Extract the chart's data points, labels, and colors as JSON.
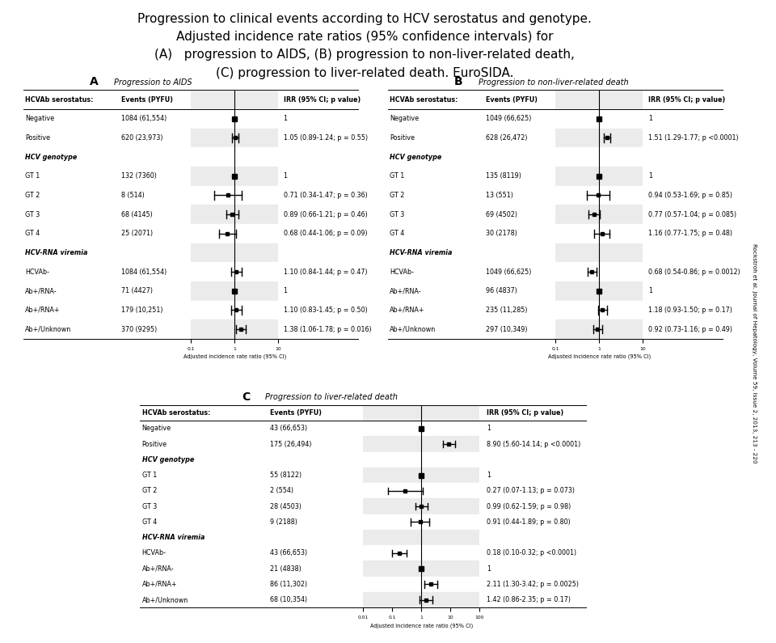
{
  "title_line1": "Progression to clinical events according to HCV serostatus and genotype.",
  "title_line2": "Adjusted incidence rate ratios (95% confidence intervals) for",
  "title_line3": "(A)   progression to AIDS, (B) progression to non-liver-related death,",
  "title_line4": "(C) progression to liver-related death. EuroSIDA.",
  "side_text": "Rockstroh et al. Journal of Hepatology, Volume 59, Issue 2, 2013, 213 - 220",
  "panel_A": {
    "title": "Progression to AIDS",
    "label": "A",
    "rows": [
      {
        "label": "HCVAb serostatus:",
        "events": "Events (PYFU)",
        "irr": null,
        "lo": null,
        "hi": null,
        "irr_text": "IRR (95% CI; p value)",
        "header": true
      },
      {
        "label": "Negative",
        "events": "1084 (61,554)",
        "irr": 1.0,
        "lo": 1.0,
        "hi": 1.0,
        "irr_text": "1",
        "reference": true
      },
      {
        "label": "Positive",
        "events": "620 (23,973)",
        "irr": 1.05,
        "lo": 0.89,
        "hi": 1.24,
        "irr_text": "1.05 (0.89-1.24; p = 0.55)",
        "reference": false
      },
      {
        "label": "HCV genotype",
        "events": "",
        "irr": null,
        "lo": null,
        "hi": null,
        "irr_text": "",
        "bold": true
      },
      {
        "label": "GT 1",
        "events": "132 (7360)",
        "irr": 1.0,
        "lo": 1.0,
        "hi": 1.0,
        "irr_text": "1",
        "reference": true
      },
      {
        "label": "GT 2",
        "events": "8 (514)",
        "irr": 0.71,
        "lo": 0.34,
        "hi": 1.47,
        "irr_text": "0.71 (0.34-1.47; p = 0.36)",
        "reference": false
      },
      {
        "label": "GT 3",
        "events": "68 (4145)",
        "irr": 0.89,
        "lo": 0.66,
        "hi": 1.21,
        "irr_text": "0.89 (0.66-1.21; p = 0.46)",
        "reference": false
      },
      {
        "label": "GT 4",
        "events": "25 (2071)",
        "irr": 0.68,
        "lo": 0.44,
        "hi": 1.06,
        "irr_text": "0.68 (0.44-1.06; p = 0.09)",
        "reference": false
      },
      {
        "label": "HCV-RNA viremia",
        "events": "",
        "irr": null,
        "lo": null,
        "hi": null,
        "irr_text": "",
        "bold": true
      },
      {
        "label": "HCVAb-",
        "events": "1084 (61,554)",
        "irr": 1.1,
        "lo": 0.84,
        "hi": 1.44,
        "irr_text": "1.10 (0.84-1.44; p = 0.47)",
        "reference": false
      },
      {
        "label": "Ab+/RNA-",
        "events": "71 (4427)",
        "irr": 1.0,
        "lo": 1.0,
        "hi": 1.0,
        "irr_text": "1",
        "reference": true
      },
      {
        "label": "Ab+/RNA+",
        "events": "179 (10,251)",
        "irr": 1.1,
        "lo": 0.83,
        "hi": 1.45,
        "irr_text": "1.10 (0.83-1.45; p = 0.50)",
        "reference": false
      },
      {
        "label": "Ab+/Unknown",
        "events": "370 (9295)",
        "irr": 1.38,
        "lo": 1.06,
        "hi": 1.78,
        "irr_text": "1.38 (1.06-1.78; p = 0.016)",
        "reference": false
      }
    ],
    "xmin": 0.1,
    "xmax": 10,
    "xticks": [
      0.1,
      1,
      10
    ],
    "xlabel": "Adjusted incidence rate ratio (95% CI)"
  },
  "panel_B": {
    "title": "Progression to non-liver-related death",
    "label": "B",
    "rows": [
      {
        "label": "HCVAb serostatus:",
        "events": "Events (PYFU)",
        "irr": null,
        "lo": null,
        "hi": null,
        "irr_text": "IRR (95% CI; p value)",
        "header": true
      },
      {
        "label": "Negative",
        "events": "1049 (66,625)",
        "irr": 1.0,
        "lo": 1.0,
        "hi": 1.0,
        "irr_text": "1",
        "reference": true
      },
      {
        "label": "Positive",
        "events": "628 (26,472)",
        "irr": 1.51,
        "lo": 1.29,
        "hi": 1.77,
        "irr_text": "1.51 (1.29-1.77; p <0.0001)",
        "reference": false
      },
      {
        "label": "HCV genotype",
        "events": "",
        "irr": null,
        "lo": null,
        "hi": null,
        "irr_text": "",
        "bold": true
      },
      {
        "label": "GT 1",
        "events": "135 (8119)",
        "irr": 1.0,
        "lo": 1.0,
        "hi": 1.0,
        "irr_text": "1",
        "reference": true
      },
      {
        "label": "GT 2",
        "events": "13 (551)",
        "irr": 0.94,
        "lo": 0.53,
        "hi": 1.69,
        "irr_text": "0.94 (0.53-1.69; p = 0.85)",
        "reference": false
      },
      {
        "label": "GT 3",
        "events": "69 (4502)",
        "irr": 0.77,
        "lo": 0.57,
        "hi": 1.04,
        "irr_text": "0.77 (0.57-1.04; p = 0.085)",
        "reference": false
      },
      {
        "label": "GT 4",
        "events": "30 (2178)",
        "irr": 1.16,
        "lo": 0.77,
        "hi": 1.75,
        "irr_text": "1.16 (0.77-1.75; p = 0.48)",
        "reference": false
      },
      {
        "label": "HCV-RNA viremia",
        "events": "",
        "irr": null,
        "lo": null,
        "hi": null,
        "irr_text": "",
        "bold": true
      },
      {
        "label": "HCVAb-",
        "events": "1049 (66,625)",
        "irr": 0.68,
        "lo": 0.54,
        "hi": 0.86,
        "irr_text": "0.68 (0.54-0.86; p = 0.0012)",
        "reference": false
      },
      {
        "label": "Ab+/RNA-",
        "events": "96 (4837)",
        "irr": 1.0,
        "lo": 1.0,
        "hi": 1.0,
        "irr_text": "1",
        "reference": true
      },
      {
        "label": "Ab+/RNA+",
        "events": "235 (11,285)",
        "irr": 1.18,
        "lo": 0.93,
        "hi": 1.5,
        "irr_text": "1.18 (0.93-1.50; p = 0.17)",
        "reference": false
      },
      {
        "label": "Ab+/Unknown",
        "events": "297 (10,349)",
        "irr": 0.92,
        "lo": 0.73,
        "hi": 1.16,
        "irr_text": "0.92 (0.73-1.16; p = 0.49)",
        "reference": false
      }
    ],
    "xmin": 0.1,
    "xmax": 10,
    "xticks": [
      0.1,
      1,
      10
    ],
    "xlabel": "Adjusted incidence rate ratio (95% CI)"
  },
  "panel_C": {
    "title": "Progression to liver-related death",
    "label": "C",
    "rows": [
      {
        "label": "HCVAb serostatus:",
        "events": "Events (PYFU)",
        "irr": null,
        "lo": null,
        "hi": null,
        "irr_text": "IRR (95% CI; p value)",
        "header": true
      },
      {
        "label": "Negative",
        "events": "43 (66,653)",
        "irr": 1.0,
        "lo": 1.0,
        "hi": 1.0,
        "irr_text": "1",
        "reference": true
      },
      {
        "label": "Positive",
        "events": "175 (26,494)",
        "irr": 8.9,
        "lo": 5.6,
        "hi": 14.14,
        "irr_text": "8.90 (5.60-14.14; p <0.0001)",
        "reference": false
      },
      {
        "label": "HCV genotype",
        "events": "",
        "irr": null,
        "lo": null,
        "hi": null,
        "irr_text": "",
        "bold": true
      },
      {
        "label": "GT 1",
        "events": "55 (8122)",
        "irr": 1.0,
        "lo": 1.0,
        "hi": 1.0,
        "irr_text": "1",
        "reference": true
      },
      {
        "label": "GT 2",
        "events": "2 (554)",
        "irr": 0.27,
        "lo": 0.07,
        "hi": 1.13,
        "irr_text": "0.27 (0.07-1.13; p = 0.073)",
        "reference": false
      },
      {
        "label": "GT 3",
        "events": "28 (4503)",
        "irr": 0.99,
        "lo": 0.62,
        "hi": 1.59,
        "irr_text": "0.99 (0.62-1.59; p = 0.98)",
        "reference": false
      },
      {
        "label": "GT 4",
        "events": "9 (2188)",
        "irr": 0.91,
        "lo": 0.44,
        "hi": 1.89,
        "irr_text": "0.91 (0.44-1.89; p = 0.80)",
        "reference": false
      },
      {
        "label": "HCV-RNA viremia",
        "events": "",
        "irr": null,
        "lo": null,
        "hi": null,
        "irr_text": "",
        "bold": true
      },
      {
        "label": "HCVAb-",
        "events": "43 (66,653)",
        "irr": 0.18,
        "lo": 0.1,
        "hi": 0.32,
        "irr_text": "0.18 (0.10-0.32; p <0.0001)",
        "reference": false
      },
      {
        "label": "Ab+/RNA-",
        "events": "21 (4838)",
        "irr": 1.0,
        "lo": 1.0,
        "hi": 1.0,
        "irr_text": "1",
        "reference": true
      },
      {
        "label": "Ab+/RNA+",
        "events": "86 (11,302)",
        "irr": 2.11,
        "lo": 1.3,
        "hi": 3.42,
        "irr_text": "2.11 (1.30-3.42; p = 0.0025)",
        "reference": false
      },
      {
        "label": "Ab+/Unknown",
        "events": "68 (10,354)",
        "irr": 1.42,
        "lo": 0.86,
        "hi": 2.35,
        "irr_text": "1.42 (0.86-2.35; p = 0.17)",
        "reference": false
      }
    ],
    "xmin": 0.01,
    "xmax": 100,
    "xticks": [
      0.01,
      0.1,
      1,
      10,
      100
    ],
    "xlabel": "Adjusted incidence rate ratio (95% CI)"
  },
  "bg_color": "#ffffff",
  "row_alt_color": "#ebebeb",
  "header_color": "#d0d0d0"
}
